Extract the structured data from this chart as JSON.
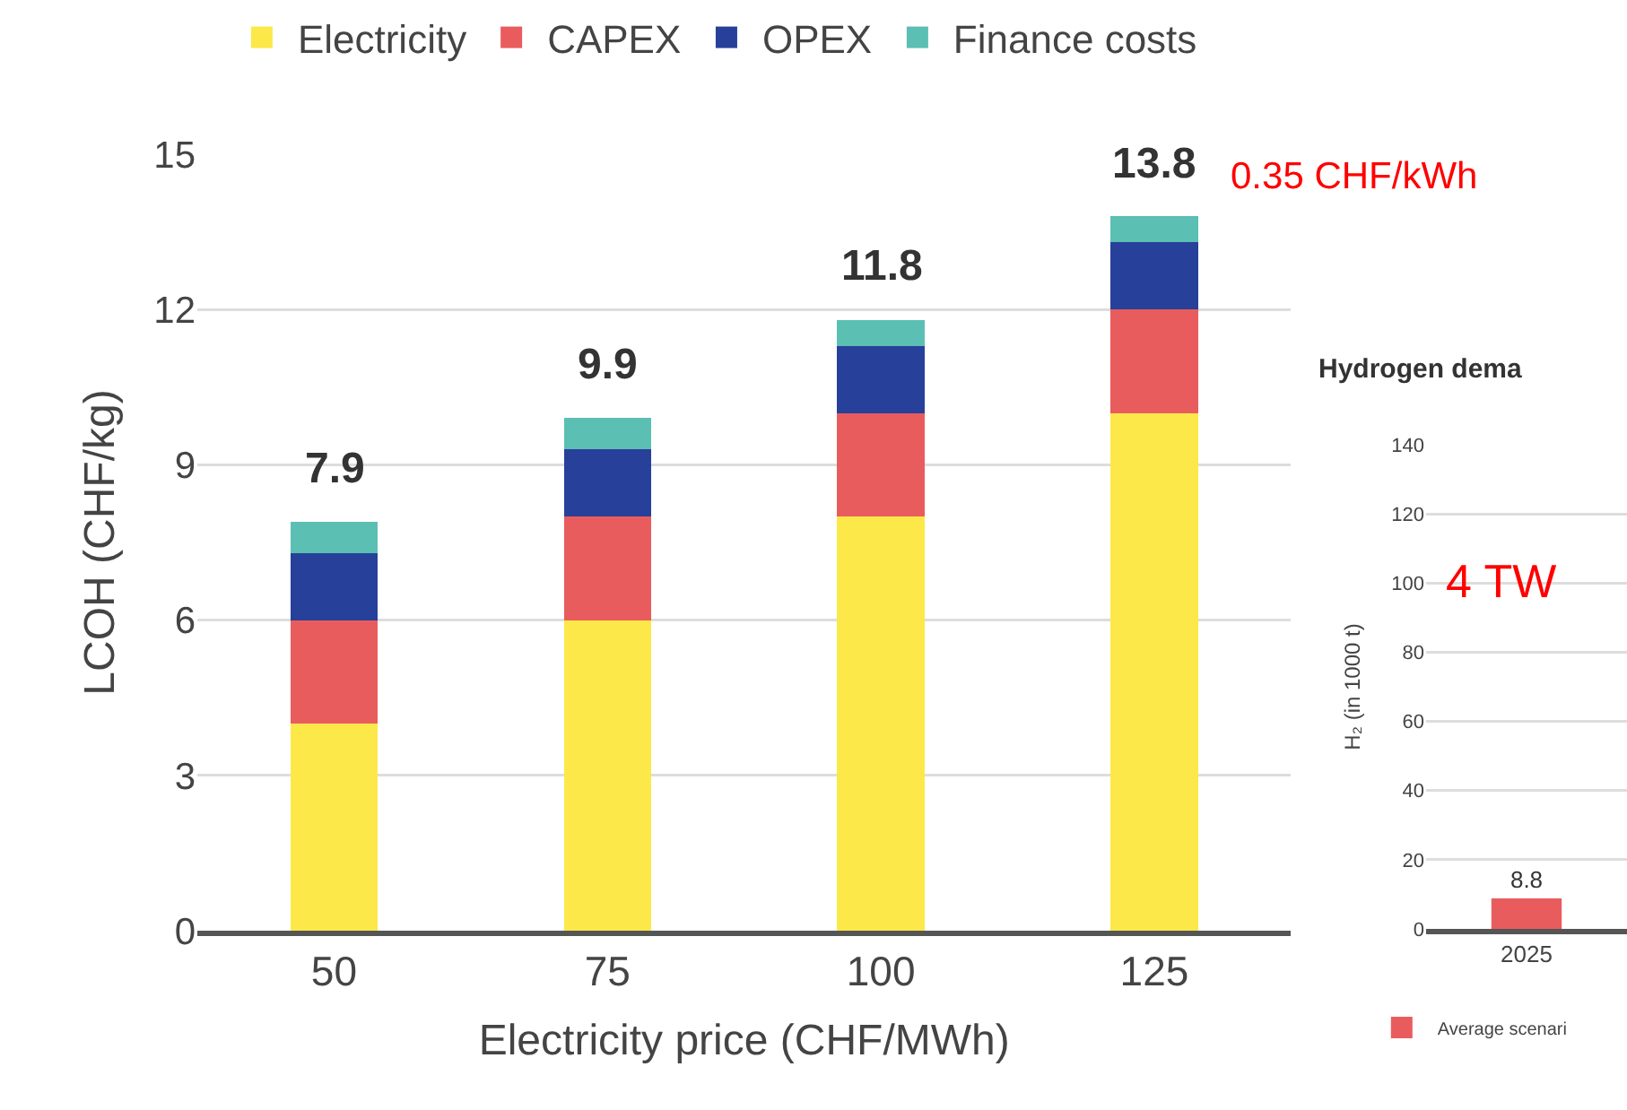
{
  "chart_data": [
    {
      "type": "bar",
      "stacked": true,
      "xlabel": "Electricity price (CHF/MWh)",
      "ylabel": "LCOH (CHF/kg)",
      "categories": [
        "50",
        "75",
        "100",
        "125"
      ],
      "series": [
        {
          "name": "Electricity",
          "color": "#fde84a",
          "values": [
            4.0,
            6.0,
            8.0,
            10.0
          ]
        },
        {
          "name": "CAPEX",
          "color": "#e95c5e",
          "values": [
            2.0,
            2.0,
            2.0,
            2.0
          ]
        },
        {
          "name": "OPEX",
          "color": "#27409a",
          "values": [
            1.3,
            1.3,
            1.3,
            1.3
          ]
        },
        {
          "name": "Finance costs",
          "color": "#5bbfb3",
          "values": [
            0.6,
            0.6,
            0.5,
            0.5
          ]
        }
      ],
      "totals": [
        "7.9",
        "9.9",
        "11.8",
        "13.8"
      ],
      "annotations": [
        "0.35 CHF/kWh"
      ],
      "ylim": [
        0,
        15
      ],
      "yticks": [
        0,
        3,
        6,
        9,
        12,
        15
      ],
      "grid": "y",
      "legend": "top"
    },
    {
      "type": "bar",
      "title": "Hydrogen dema",
      "ylabel": "H₂ (in 1000 t)",
      "categories": [
        "2025"
      ],
      "series": [
        {
          "name": "Average scenari",
          "color": "#e95c5e",
          "values": [
            8.8
          ]
        }
      ],
      "data_labels": true,
      "annotations": [
        "4 TW"
      ],
      "ylim": [
        0,
        140
      ],
      "yticks": [
        0,
        20,
        40,
        60,
        80,
        100,
        120,
        140
      ],
      "grid": "y",
      "legend": "bottom"
    }
  ]
}
